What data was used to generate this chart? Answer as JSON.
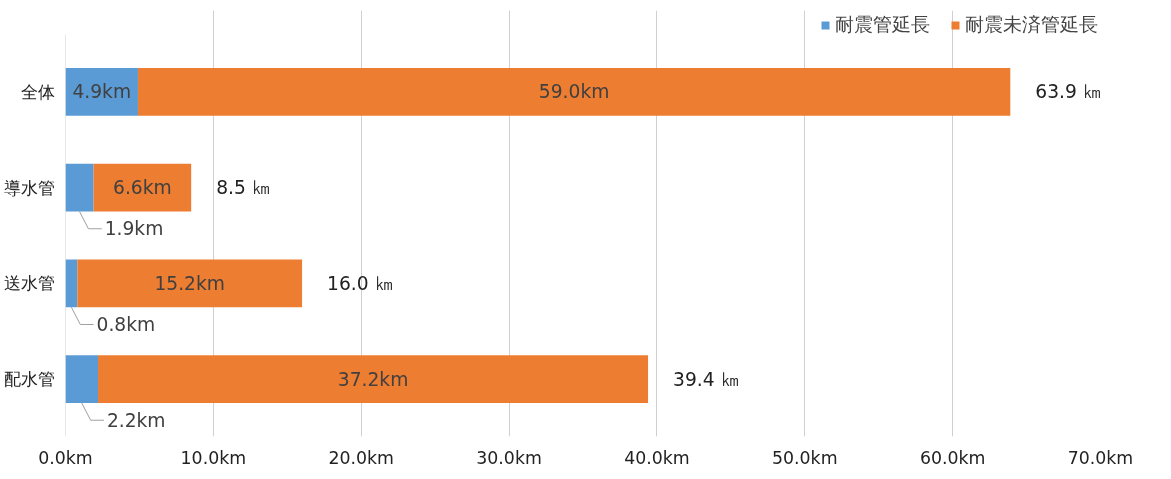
{
  "chart_data": {
    "type": "bar",
    "orientation": "horizontal",
    "stacked": true,
    "categories": [
      "全体",
      "導水管",
      "送水管",
      "配水管"
    ],
    "series": [
      {
        "name": "耐震管延長",
        "color": "#5b9bd5",
        "values": [
          4.9,
          1.9,
          0.8,
          2.2
        ],
        "value_labels": [
          "4.9km",
          "1.9km",
          "0.8km",
          "2.2km"
        ]
      },
      {
        "name": "耐震未済管延長",
        "color": "#ed7d31",
        "values": [
          59.0,
          6.6,
          15.2,
          37.2
        ],
        "value_labels": [
          "59.0km",
          "6.6km",
          "15.2km",
          "37.2km"
        ]
      }
    ],
    "totals": [
      "63.9 ㎞",
      "8.5 ㎞",
      "16.0 ㎞",
      "39.4 ㎞"
    ],
    "xlim": [
      0,
      70
    ],
    "xticks": [
      {
        "value": 0,
        "label": "0.0km"
      },
      {
        "value": 10,
        "label": "10.0km"
      },
      {
        "value": 20,
        "label": "20.0km"
      },
      {
        "value": 30,
        "label": "30.0km"
      },
      {
        "value": 40,
        "label": "40.0km"
      },
      {
        "value": 50,
        "label": "50.0km"
      },
      {
        "value": 60,
        "label": "60.0km"
      },
      {
        "value": 70,
        "label": "70.0km"
      }
    ],
    "grid": "x",
    "legend": "top right"
  }
}
